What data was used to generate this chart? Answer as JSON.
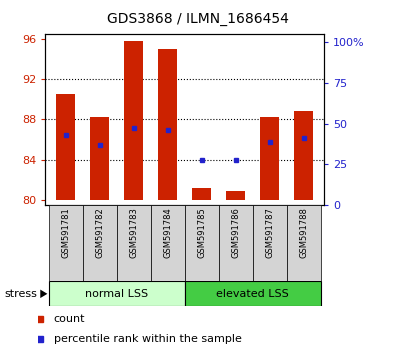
{
  "title": "GDS3868 / ILMN_1686454",
  "samples": [
    "GSM591781",
    "GSM591782",
    "GSM591783",
    "GSM591784",
    "GSM591785",
    "GSM591786",
    "GSM591787",
    "GSM591788"
  ],
  "bar_heights": [
    90.5,
    88.2,
    95.8,
    95.0,
    81.2,
    80.9,
    88.2,
    88.8
  ],
  "percentile_values": [
    86.5,
    85.5,
    87.2,
    87.0,
    84.0,
    84.0,
    85.8,
    86.2
  ],
  "bar_bottom": 80.0,
  "ylim_left": [
    79.5,
    96.5
  ],
  "yticks_left": [
    80,
    84,
    88,
    92,
    96
  ],
  "ylim_right": [
    0,
    105
  ],
  "yticks_right": [
    0,
    25,
    50,
    75,
    100
  ],
  "ytick_labels_right": [
    "0",
    "25",
    "50",
    "75",
    "100%"
  ],
  "bar_color": "#cc2200",
  "percentile_color": "#2222cc",
  "groups": [
    {
      "label": "normal LSS",
      "start": 0,
      "end": 4,
      "color": "#ccffcc"
    },
    {
      "label": "elevated LSS",
      "start": 4,
      "end": 8,
      "color": "#44cc44"
    }
  ],
  "stress_label": "stress",
  "legend_count_label": "count",
  "legend_percentile_label": "percentile rank within the sample",
  "background_color": "#ffffff",
  "plot_bg_color": "#ffffff",
  "title_fontsize": 10,
  "tick_label_color_left": "#cc2200",
  "tick_label_color_right": "#2222cc",
  "bar_width": 0.55,
  "label_bg_color": "#d4d4d4"
}
